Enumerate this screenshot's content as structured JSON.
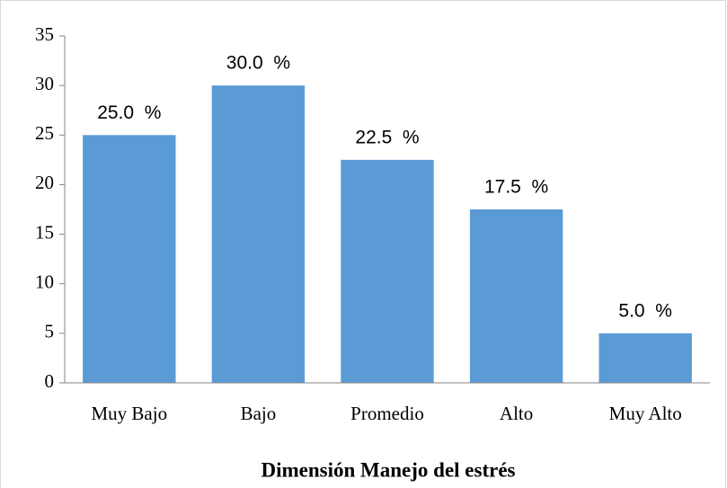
{
  "chart_data": {
    "type": "bar",
    "x_label": "Dimensión Manejo del estrés",
    "categories": [
      "Muy Bajo",
      "Bajo",
      "Promedio",
      "Alto",
      "Muy Alto"
    ],
    "values": [
      25.0,
      30.0,
      22.5,
      17.5,
      5.0
    ],
    "value_labels": [
      "25.0  %",
      "30.0  %",
      "22.5  %",
      "17.5  %",
      "5.0  %"
    ],
    "color": "#5b9bd5",
    "ylim": [
      0,
      35
    ],
    "yticks": [
      0,
      5,
      10,
      15,
      20,
      25,
      30,
      35
    ],
    "grid": false
  }
}
